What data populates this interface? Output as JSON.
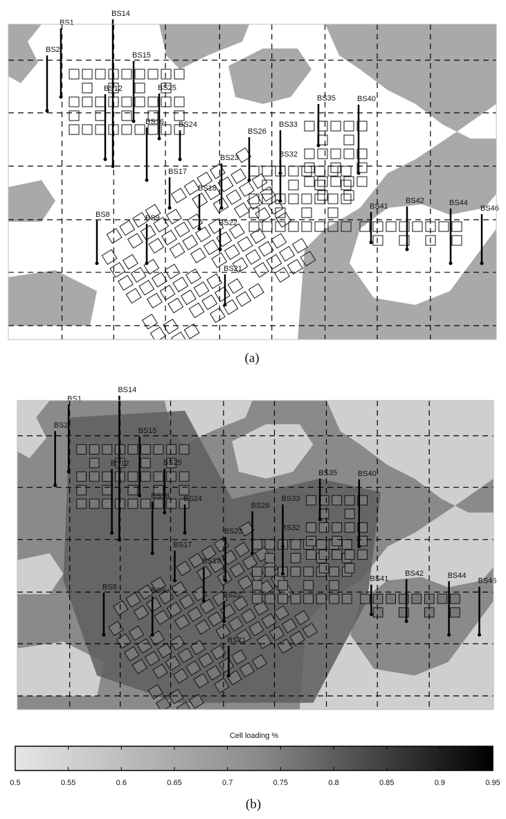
{
  "panels": [
    {
      "caption": "(a)",
      "stations": [
        "BS1",
        "BS14",
        "BS2",
        "BS15",
        "BS12",
        "BS25",
        "BS16",
        "BS24",
        "BS17",
        "BS18",
        "BS23",
        "BS26",
        "BS33",
        "BS35",
        "BS40",
        "BS32",
        "BS41",
        "BS42",
        "BS44",
        "BS46",
        "BS22",
        "BS21",
        "BS9",
        "BS8"
      ]
    },
    {
      "caption": "(b)",
      "stations": [
        "BS1",
        "BS14",
        "BS2",
        "BS15",
        "BS12",
        "BS25",
        "BS16",
        "BS24",
        "BS17",
        "BS18",
        "BS23",
        "BS26",
        "BS33",
        "BS35",
        "BS40",
        "BS32",
        "BS41",
        "BS42",
        "BS44",
        "BS46",
        "BS22",
        "BS21",
        "BS9",
        "BS8"
      ]
    }
  ],
  "colorbar": {
    "title": "Cell loading %",
    "lim": [
      0.5,
      0.95
    ],
    "ticks": [
      0.5,
      0.55,
      0.6,
      0.65,
      0.7,
      0.75,
      0.8,
      0.85,
      0.9,
      0.95
    ]
  }
}
